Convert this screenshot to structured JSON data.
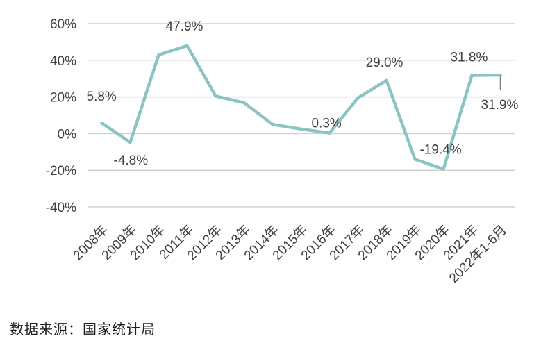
{
  "chart_data": {
    "type": "line",
    "categories": [
      "2008年",
      "2009年",
      "2010年",
      "2011年",
      "2012年",
      "2013年",
      "2014年",
      "2015年",
      "2016年",
      "2017年",
      "2018年",
      "2019年",
      "2020年",
      "2021年",
      "2022年1-6月"
    ],
    "series": [
      {
        "values": [
          5.8,
          -4.8,
          43.0,
          47.9,
          20.5,
          16.8,
          5.0,
          2.5,
          0.3,
          19.5,
          29.0,
          -14.0,
          -19.4,
          31.8,
          31.9
        ]
      }
    ],
    "data_labels": [
      {
        "index": 0,
        "text": "5.8%"
      },
      {
        "index": 1,
        "text": "-4.8%"
      },
      {
        "index": 3,
        "text": "47.9%"
      },
      {
        "index": 8,
        "text": "0.3%"
      },
      {
        "index": 10,
        "text": "29.0%"
      },
      {
        "index": 12,
        "text": "-19.4%"
      },
      {
        "index": 13,
        "text": "31.8%"
      },
      {
        "index": 14,
        "text": "31.9%"
      }
    ],
    "y_ticks": [
      "60%",
      "40%",
      "20%",
      "0%",
      "-20%",
      "-40%"
    ],
    "ylim": [
      -40,
      60
    ],
    "grid": true,
    "legend": "none",
    "line_color": "#8cc4c4"
  },
  "source_text": "数据来源：国家统计局"
}
